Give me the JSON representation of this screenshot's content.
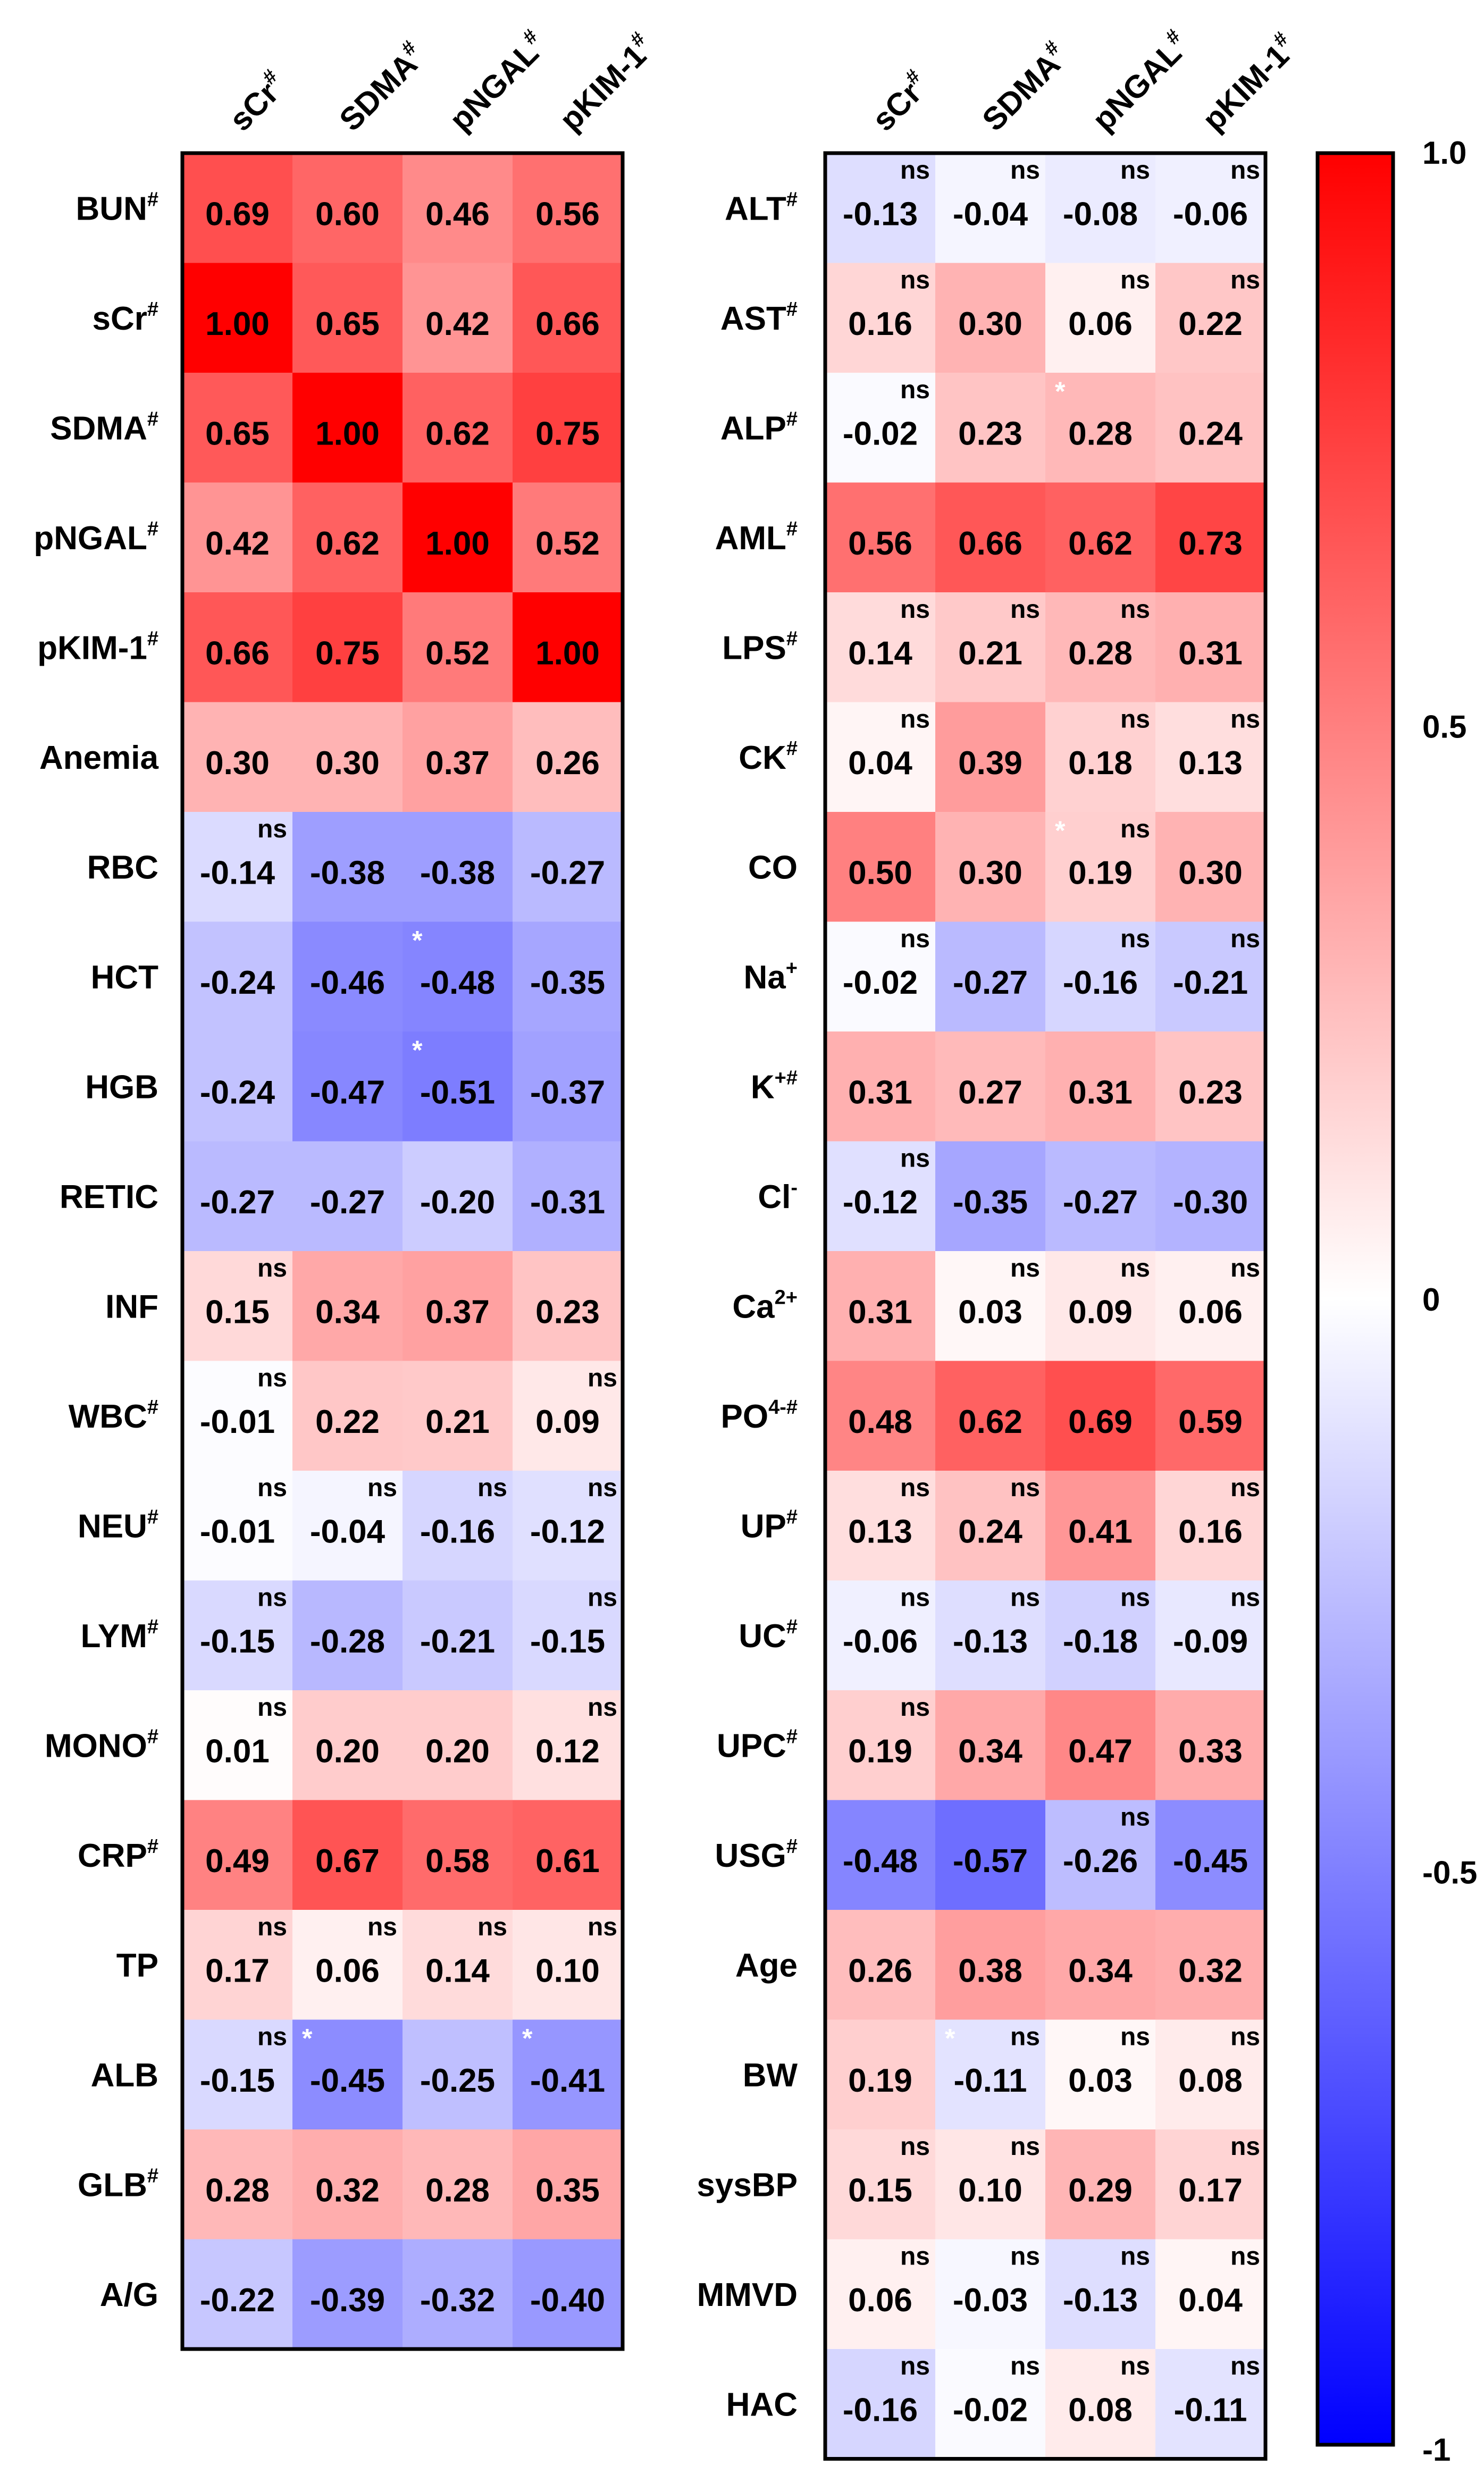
{
  "chart_data": [
    {
      "type": "heatmap",
      "title": "",
      "columns": [
        {
          "name": "sCr",
          "sup": "#"
        },
        {
          "name": "SDMA",
          "sup": "#"
        },
        {
          "name": "pNGAL",
          "sup": "#"
        },
        {
          "name": "pKIM-1",
          "sup": "#"
        }
      ],
      "rows": [
        {
          "name": "BUN",
          "sup": "#",
          "values": [
            0.69,
            0.6,
            0.46,
            0.56
          ],
          "flags": [
            "",
            "",
            "",
            ""
          ]
        },
        {
          "name": "sCr",
          "sup": "#",
          "values": [
            1.0,
            0.65,
            0.42,
            0.66
          ],
          "flags": [
            "",
            "",
            "",
            ""
          ]
        },
        {
          "name": "SDMA",
          "sup": "#",
          "values": [
            0.65,
            1.0,
            0.62,
            0.75
          ],
          "flags": [
            "",
            "",
            "",
            ""
          ]
        },
        {
          "name": "pNGAL",
          "sup": "#",
          "values": [
            0.42,
            0.62,
            1.0,
            0.52
          ],
          "flags": [
            "",
            "",
            "",
            ""
          ]
        },
        {
          "name": "pKIM-1",
          "sup": "#",
          "values": [
            0.66,
            0.75,
            0.52,
            1.0
          ],
          "flags": [
            "",
            "",
            "",
            ""
          ]
        },
        {
          "name": "Anemia",
          "sup": "",
          "values": [
            0.3,
            0.3,
            0.37,
            0.26
          ],
          "flags": [
            "",
            "",
            "",
            ""
          ]
        },
        {
          "name": "RBC",
          "sup": "",
          "values": [
            -0.14,
            -0.38,
            -0.38,
            -0.27
          ],
          "flags": [
            "ns",
            "",
            "",
            ""
          ]
        },
        {
          "name": "HCT",
          "sup": "",
          "values": [
            -0.24,
            -0.46,
            -0.48,
            -0.35
          ],
          "flags": [
            "",
            "",
            "*",
            ""
          ]
        },
        {
          "name": "HGB",
          "sup": "",
          "values": [
            -0.24,
            -0.47,
            -0.51,
            -0.37
          ],
          "flags": [
            "",
            "",
            "*",
            ""
          ]
        },
        {
          "name": "RETIC",
          "sup": "",
          "values": [
            -0.27,
            -0.27,
            -0.2,
            -0.31
          ],
          "flags": [
            "",
            "",
            "",
            ""
          ]
        },
        {
          "name": "INF",
          "sup": "",
          "values": [
            0.15,
            0.34,
            0.37,
            0.23
          ],
          "flags": [
            "ns",
            "",
            "",
            ""
          ]
        },
        {
          "name": "WBC",
          "sup": "#",
          "values": [
            -0.01,
            0.22,
            0.21,
            0.09
          ],
          "flags": [
            "ns",
            "",
            "",
            "ns"
          ]
        },
        {
          "name": "NEU",
          "sup": "#",
          "values": [
            -0.01,
            -0.04,
            -0.16,
            -0.12
          ],
          "flags": [
            "ns",
            "ns",
            "ns",
            "ns"
          ]
        },
        {
          "name": "LYM",
          "sup": "#",
          "values": [
            -0.15,
            -0.28,
            -0.21,
            -0.15
          ],
          "flags": [
            "ns",
            "",
            "",
            "ns"
          ]
        },
        {
          "name": "MONO",
          "sup": "#",
          "values": [
            0.01,
            0.2,
            0.2,
            0.12
          ],
          "flags": [
            "ns",
            "",
            "",
            "ns"
          ]
        },
        {
          "name": "CRP",
          "sup": "#",
          "values": [
            0.49,
            0.67,
            0.58,
            0.61
          ],
          "flags": [
            "",
            "",
            "",
            ""
          ]
        },
        {
          "name": "TP",
          "sup": "",
          "values": [
            0.17,
            0.06,
            0.14,
            0.1
          ],
          "flags": [
            "ns",
            "ns",
            "ns",
            "ns"
          ]
        },
        {
          "name": "ALB",
          "sup": "",
          "values": [
            -0.15,
            -0.45,
            -0.25,
            -0.41
          ],
          "flags": [
            "ns",
            "*",
            "",
            "*"
          ]
        },
        {
          "name": "GLB",
          "sup": "#",
          "values": [
            0.28,
            0.32,
            0.28,
            0.35
          ],
          "flags": [
            "",
            "",
            "",
            ""
          ]
        },
        {
          "name": "A/G",
          "sup": "",
          "values": [
            -0.22,
            -0.39,
            -0.32,
            -0.4
          ],
          "flags": [
            "",
            "",
            "",
            ""
          ]
        }
      ]
    },
    {
      "type": "heatmap",
      "title": "",
      "columns": [
        {
          "name": "sCr",
          "sup": "#"
        },
        {
          "name": "SDMA",
          "sup": "#"
        },
        {
          "name": "pNGAL",
          "sup": "#"
        },
        {
          "name": "pKIM-1",
          "sup": "#"
        }
      ],
      "rows": [
        {
          "name": "ALT",
          "sup": "#",
          "values": [
            -0.13,
            -0.04,
            -0.08,
            -0.06
          ],
          "flags": [
            "ns",
            "ns",
            "ns",
            "ns"
          ]
        },
        {
          "name": "AST",
          "sup": "#",
          "values": [
            0.16,
            0.3,
            0.06,
            0.22
          ],
          "flags": [
            "ns",
            "",
            "ns",
            "ns"
          ]
        },
        {
          "name": "ALP",
          "sup": "#",
          "values": [
            -0.02,
            0.23,
            0.28,
            0.24
          ],
          "flags": [
            "ns",
            "",
            "*",
            ""
          ]
        },
        {
          "name": "AML",
          "sup": "#",
          "values": [
            0.56,
            0.66,
            0.62,
            0.73
          ],
          "flags": [
            "",
            "",
            "",
            ""
          ]
        },
        {
          "name": "LPS",
          "sup": "#",
          "values": [
            0.14,
            0.21,
            0.28,
            0.31
          ],
          "flags": [
            "ns",
            "ns",
            "ns",
            ""
          ]
        },
        {
          "name": "CK",
          "sup": "#",
          "values": [
            0.04,
            0.39,
            0.18,
            0.13
          ],
          "flags": [
            "ns",
            "",
            "ns",
            "ns"
          ]
        },
        {
          "name": "CO",
          "sup": "",
          "values": [
            0.5,
            0.3,
            0.19,
            0.3
          ],
          "flags": [
            "",
            "",
            "* ns",
            ""
          ]
        },
        {
          "name": "Na",
          "sup": "+",
          "values": [
            -0.02,
            -0.27,
            -0.16,
            -0.21
          ],
          "flags": [
            "ns",
            "",
            "ns",
            "ns"
          ]
        },
        {
          "name": "K",
          "sup": "+#",
          "values": [
            0.31,
            0.27,
            0.31,
            0.23
          ],
          "flags": [
            "",
            "",
            "",
            ""
          ]
        },
        {
          "name": "Cl",
          "sup": "-",
          "values": [
            -0.12,
            -0.35,
            -0.27,
            -0.3
          ],
          "flags": [
            "ns",
            "",
            "",
            ""
          ]
        },
        {
          "name": "Ca",
          "sup": "2+",
          "values": [
            0.31,
            0.03,
            0.09,
            0.06
          ],
          "flags": [
            "",
            "ns",
            "ns",
            "ns"
          ]
        },
        {
          "name": "PO",
          "sup": "4-#",
          "values": [
            0.48,
            0.62,
            0.69,
            0.59
          ],
          "flags": [
            "",
            "",
            "",
            ""
          ]
        },
        {
          "name": "UP",
          "sup": "#",
          "values": [
            0.13,
            0.24,
            0.41,
            0.16
          ],
          "flags": [
            "ns",
            "ns",
            "",
            "ns"
          ]
        },
        {
          "name": "UC",
          "sup": "#",
          "values": [
            -0.06,
            -0.13,
            -0.18,
            -0.09
          ],
          "flags": [
            "ns",
            "ns",
            "ns",
            "ns"
          ]
        },
        {
          "name": "UPC",
          "sup": "#",
          "values": [
            0.19,
            0.34,
            0.47,
            0.33
          ],
          "flags": [
            "ns",
            "",
            "",
            ""
          ]
        },
        {
          "name": "USG",
          "sup": "#",
          "values": [
            -0.48,
            -0.57,
            -0.26,
            -0.45
          ],
          "flags": [
            "",
            "",
            "ns",
            ""
          ]
        },
        {
          "name": "Age",
          "sup": "",
          "values": [
            0.26,
            0.38,
            0.34,
            0.32
          ],
          "flags": [
            "",
            "",
            "",
            ""
          ]
        },
        {
          "name": "BW",
          "sup": "",
          "values": [
            0.19,
            -0.11,
            0.03,
            0.08
          ],
          "flags": [
            "",
            "* ns",
            "ns",
            "ns"
          ]
        },
        {
          "name": "sysBP",
          "sup": "",
          "values": [
            0.15,
            0.1,
            0.29,
            0.17
          ],
          "flags": [
            "ns",
            "ns",
            "",
            "ns"
          ]
        },
        {
          "name": "MMVD",
          "sup": "",
          "values": [
            0.06,
            -0.03,
            -0.13,
            0.04
          ],
          "flags": [
            "ns",
            "ns",
            "ns",
            "ns"
          ]
        },
        {
          "name": "HAC",
          "sup": "",
          "values": [
            -0.16,
            -0.02,
            0.08,
            -0.11
          ],
          "flags": [
            "ns",
            "ns",
            "ns",
            "ns"
          ]
        }
      ]
    }
  ],
  "colorbar": {
    "min": -1,
    "max": 1,
    "ticks": [
      {
        "value": 1.0,
        "label": "1.0"
      },
      {
        "value": 0.5,
        "label": "0.5"
      },
      {
        "value": 0,
        "label": "0"
      },
      {
        "value": -0.5,
        "label": "-0.5"
      },
      {
        "value": -1,
        "label": "-1"
      }
    ],
    "colors": {
      "negative": "#0000ff",
      "zero": "#ffffff",
      "positive": "#ff0000"
    }
  }
}
